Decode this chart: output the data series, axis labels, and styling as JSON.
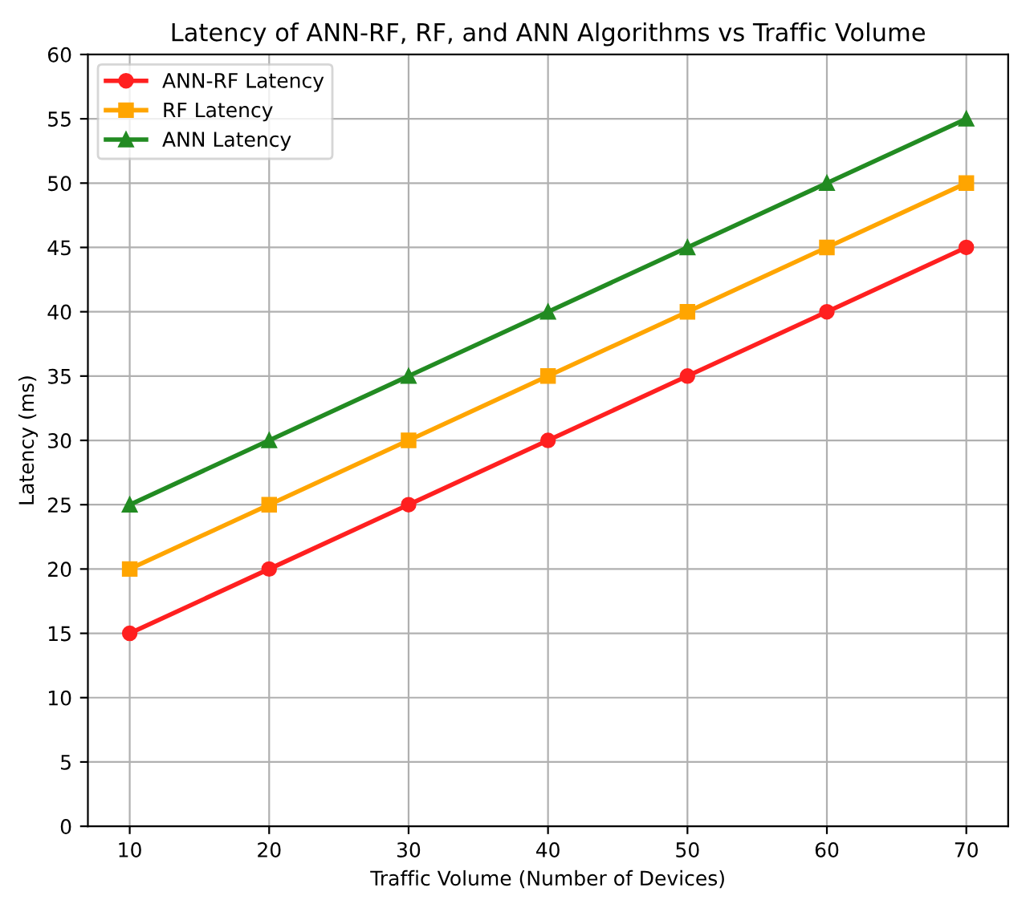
{
  "chart_data": {
    "type": "line",
    "title": "Latency of ANN-RF, RF, and ANN Algorithms vs Traffic Volume",
    "xlabel": "Traffic Volume (Number of Devices)",
    "ylabel": "Latency (ms)",
    "x": [
      10,
      20,
      30,
      40,
      50,
      60,
      70
    ],
    "series": [
      {
        "name": "ANN-RF Latency",
        "color": "#ff2020",
        "marker": "circle",
        "values": [
          15,
          20,
          25,
          30,
          35,
          40,
          45
        ]
      },
      {
        "name": "RF Latency",
        "color": "#ffa500",
        "marker": "square",
        "values": [
          20,
          25,
          30,
          35,
          40,
          45,
          50
        ]
      },
      {
        "name": "ANN Latency",
        "color": "#228b22",
        "marker": "triangle",
        "values": [
          25,
          30,
          35,
          40,
          45,
          50,
          55
        ]
      }
    ],
    "xlim": [
      7,
      73
    ],
    "xticks": [
      10,
      20,
      30,
      40,
      50,
      60,
      70
    ],
    "ylim": [
      0,
      60
    ],
    "yticks": [
      0,
      5,
      10,
      15,
      20,
      25,
      30,
      35,
      40,
      45,
      50,
      55,
      60
    ],
    "grid": true,
    "legend": "top left",
    "line_style": "solid"
  }
}
